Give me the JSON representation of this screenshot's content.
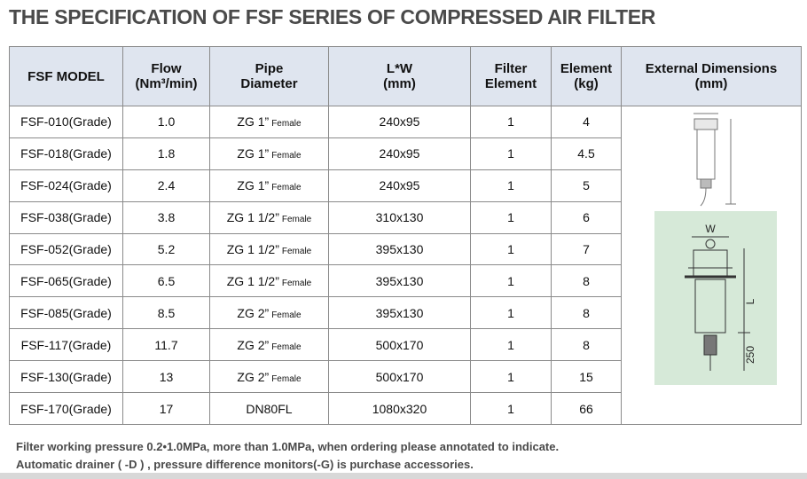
{
  "title": "THE SPECIFICATION OF FSF SERIES OF COMPRESSED AIR FILTER",
  "table": {
    "header": [
      [
        "FSF MODEL"
      ],
      [
        "Flow",
        "(Nm³/min)"
      ],
      [
        "Pipe",
        "Diameter"
      ],
      [
        "L*W",
        "(mm)"
      ],
      [
        "Filter",
        "Element"
      ],
      [
        "Element",
        "(kg)"
      ],
      [
        "External Dimensions",
        "(mm)"
      ]
    ],
    "rows": [
      [
        "FSF-010(Grade)",
        "1.0",
        {
          "main": "ZG 1”",
          "sub": "Female"
        },
        "240x95",
        "1",
        "4"
      ],
      [
        "FSF-018(Grade)",
        "1.8",
        {
          "main": "ZG 1”",
          "sub": "Female"
        },
        "240x95",
        "1",
        "4.5"
      ],
      [
        "FSF-024(Grade)",
        "2.4",
        {
          "main": "ZG 1”",
          "sub": "Female"
        },
        "240x95",
        "1",
        "5"
      ],
      [
        "FSF-038(Grade)",
        "3.8",
        {
          "main": "ZG 1  1/2”",
          "sub": "Female"
        },
        "310x130",
        "1",
        "6"
      ],
      [
        "FSF-052(Grade)",
        "5.2",
        {
          "main": "ZG 1  1/2”",
          "sub": "Female"
        },
        "395x130",
        "1",
        "7"
      ],
      [
        "FSF-065(Grade)",
        "6.5",
        {
          "main": "ZG 1  1/2”",
          "sub": "Female"
        },
        "395x130",
        "1",
        "8"
      ],
      [
        "FSF-085(Grade)",
        "8.5",
        {
          "main": "ZG 2”",
          "sub": "Female"
        },
        "395x130",
        "1",
        "8"
      ],
      [
        "FSF-117(Grade)",
        "11.7",
        {
          "main": "ZG 2”",
          "sub": "Female"
        },
        "500x170",
        "1",
        "8"
      ],
      [
        "FSF-130(Grade)",
        "13",
        {
          "main": "ZG 2”",
          "sub": "Female"
        },
        "500x170",
        "1",
        "15"
      ],
      [
        "FSF-170(Grade)",
        "17",
        {
          "main": "DN80FL"
        },
        "1080x320",
        "1",
        "66"
      ]
    ],
    "diagram_labels": [
      "W",
      "L",
      "250"
    ]
  },
  "notes": [
    "Filter working pressure 0.2•1.0MPa, more than 1.0MPa, when ordering please annotated to indicate.",
    "Automatic drainer ( -D ) , pressure difference monitors(-G) is purchase accessories."
  ]
}
